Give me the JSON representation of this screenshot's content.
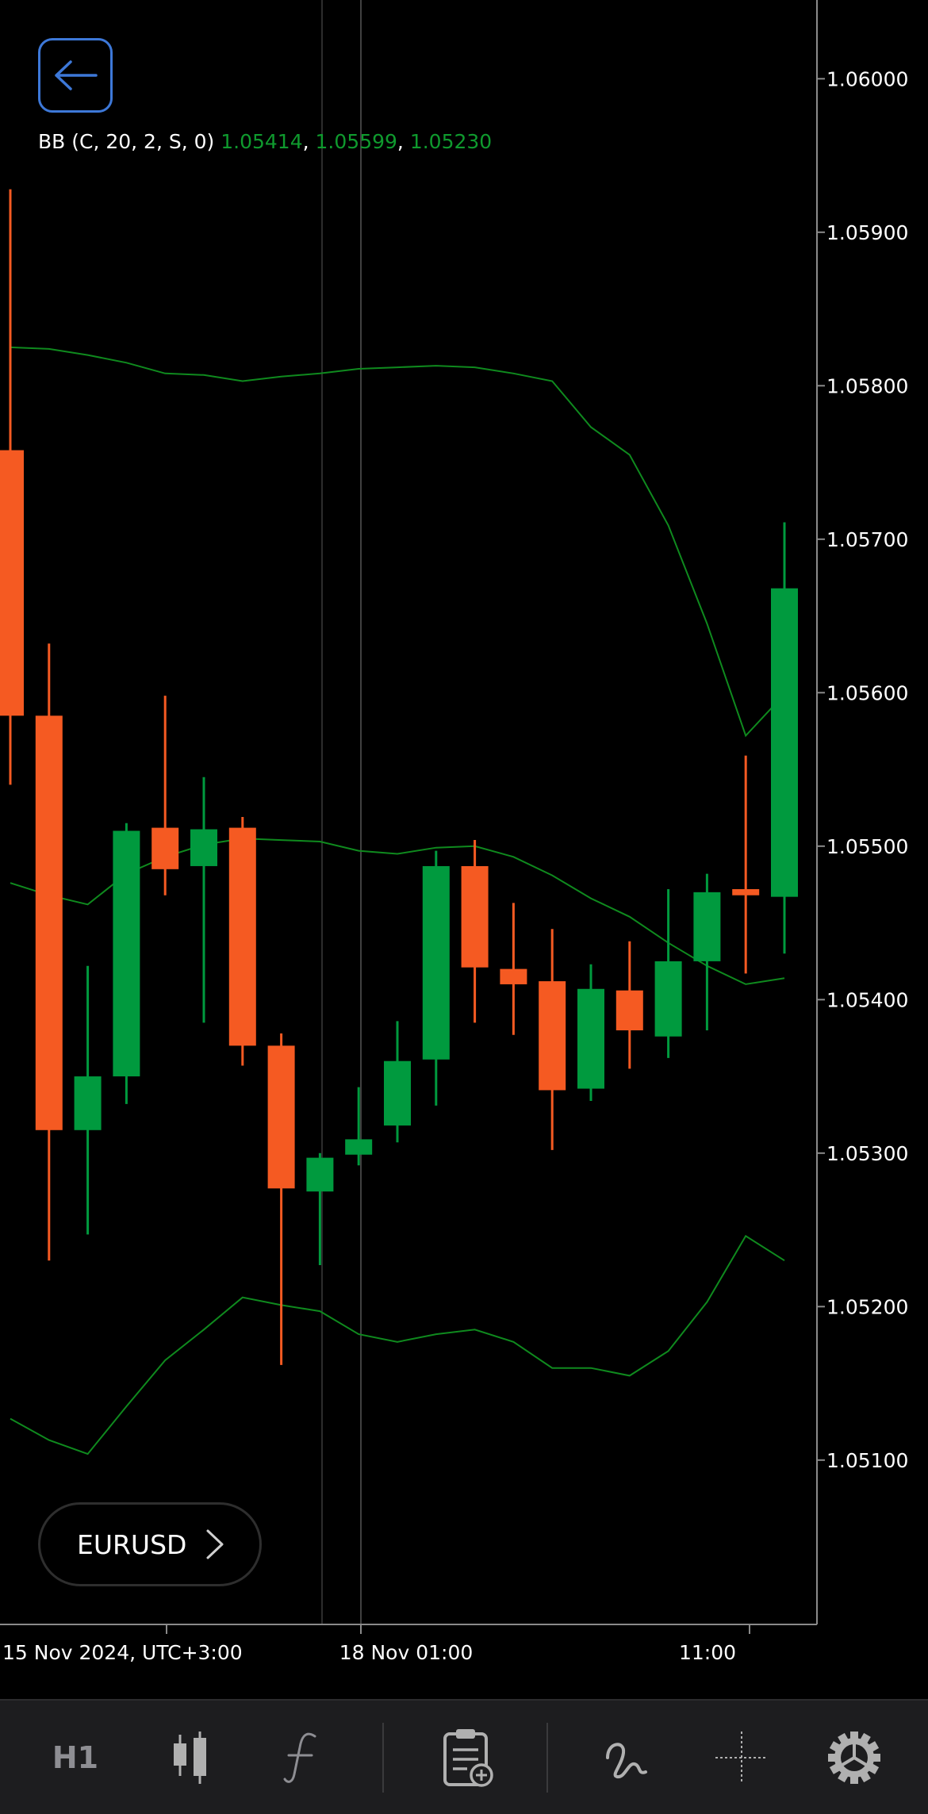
{
  "window": {
    "symbol": "EURUSD"
  },
  "indicator": {
    "label": "BB (C, 20, 2, S, 0)",
    "values": [
      "1.05414",
      "1.05599",
      "1.05230"
    ],
    "value_color": "#0f9a2e"
  },
  "colors": {
    "bull": "#009a3e",
    "bear": "#f55a22",
    "band": "#0f8a1e",
    "accent": "#3d78d8"
  },
  "toolbar": {
    "timeframe": "H1",
    "items": [
      "candlestick-icon",
      "function-icon",
      "clipboard-add-icon",
      "draw-curve-icon",
      "crosshair-icon",
      "gear-icon"
    ]
  },
  "chart_data": {
    "type": "candlestick",
    "ylim": [
      1.0501,
      1.0602
    ],
    "y_ticks": [
      "1.06000",
      "1.05900",
      "1.05800",
      "1.05700",
      "1.05600",
      "1.05500",
      "1.05400",
      "1.05300",
      "1.05200",
      "1.05100"
    ],
    "x_labels": [
      "15 Nov 2024, UTC+3:00",
      "18 Nov 01:00",
      "11:00"
    ],
    "candles": [
      {
        "o": 1.05758,
        "h": 1.05928,
        "l": 1.0554,
        "c": 1.05585
      },
      {
        "o": 1.05585,
        "h": 1.05632,
        "l": 1.0523,
        "c": 1.05315
      },
      {
        "o": 1.05315,
        "h": 1.05422,
        "l": 1.05247,
        "c": 1.0535
      },
      {
        "o": 1.0535,
        "h": 1.05515,
        "l": 1.05332,
        "c": 1.0551
      },
      {
        "o": 1.05512,
        "h": 1.05598,
        "l": 1.05468,
        "c": 1.05485
      },
      {
        "o": 1.05487,
        "h": 1.05545,
        "l": 1.05385,
        "c": 1.05511
      },
      {
        "o": 1.05512,
        "h": 1.05519,
        "l": 1.05357,
        "c": 1.0537
      },
      {
        "o": 1.0537,
        "h": 1.05378,
        "l": 1.05162,
        "c": 1.05277
      },
      {
        "o": 1.05275,
        "h": 1.053,
        "l": 1.05227,
        "c": 1.05297
      },
      {
        "o": 1.05299,
        "h": 1.05343,
        "l": 1.05292,
        "c": 1.05309
      },
      {
        "o": 1.05318,
        "h": 1.05386,
        "l": 1.05307,
        "c": 1.0536
      },
      {
        "o": 1.05361,
        "h": 1.05497,
        "l": 1.05331,
        "c": 1.05487
      },
      {
        "o": 1.05487,
        "h": 1.05504,
        "l": 1.05385,
        "c": 1.05421
      },
      {
        "o": 1.0542,
        "h": 1.05463,
        "l": 1.05377,
        "c": 1.0541
      },
      {
        "o": 1.05412,
        "h": 1.05446,
        "l": 1.05302,
        "c": 1.05341
      },
      {
        "o": 1.05342,
        "h": 1.05423,
        "l": 1.05334,
        "c": 1.05407
      },
      {
        "o": 1.05406,
        "h": 1.05438,
        "l": 1.05355,
        "c": 1.0538
      },
      {
        "o": 1.05376,
        "h": 1.05472,
        "l": 1.05362,
        "c": 1.05425
      },
      {
        "o": 1.05425,
        "h": 1.05482,
        "l": 1.0538,
        "c": 1.0547
      },
      {
        "o": 1.05472,
        "h": 1.05559,
        "l": 1.05417,
        "c": 1.05468
      },
      {
        "o": 1.05467,
        "h": 1.05711,
        "l": 1.0543,
        "c": 1.05668
      }
    ],
    "bands": {
      "upper": [
        1.05825,
        1.05824,
        1.0582,
        1.05815,
        1.05808,
        1.05807,
        1.05803,
        1.05806,
        1.05808,
        1.05811,
        1.05812,
        1.05813,
        1.05812,
        1.05808,
        1.05803,
        1.05773,
        1.05755,
        1.05709,
        1.05645,
        1.05572,
        1.05599
      ],
      "middle": [
        1.05476,
        1.05468,
        1.05462,
        1.05482,
        1.05493,
        1.05501,
        1.05505,
        1.05504,
        1.05503,
        1.05497,
        1.05495,
        1.05499,
        1.055,
        1.05493,
        1.05481,
        1.05466,
        1.05454,
        1.05437,
        1.05422,
        1.0541,
        1.05414
      ],
      "lower": [
        1.05127,
        1.05113,
        1.05104,
        1.05135,
        1.05165,
        1.05185,
        1.05206,
        1.05201,
        1.05197,
        1.05182,
        1.05177,
        1.05182,
        1.05185,
        1.05177,
        1.0516,
        1.0516,
        1.05155,
        1.05171,
        1.05203,
        1.05246,
        1.0523
      ]
    }
  }
}
